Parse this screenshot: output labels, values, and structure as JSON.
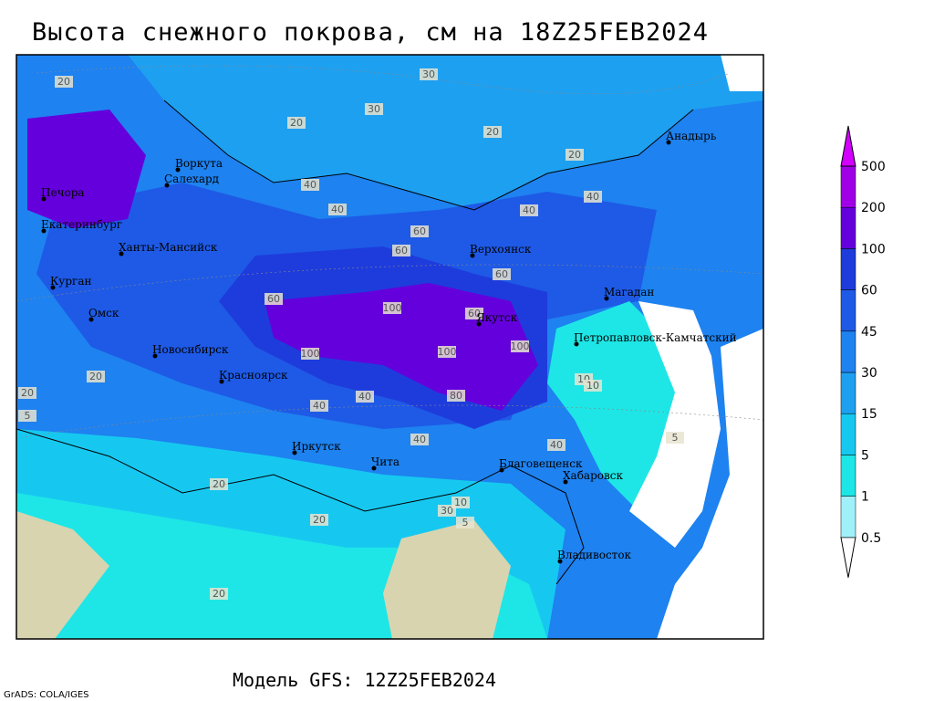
{
  "header": {
    "title": "Высота снежного покрова, см на 18Z25FEB2024"
  },
  "footer": {
    "model": "Модель GFS: 12Z25FEB2024",
    "credit": "GrADS: COLA/IGES"
  },
  "legend": {
    "labels": [
      "0.5",
      "1",
      "5",
      "15",
      "30",
      "45",
      "60",
      "100",
      "200",
      "500"
    ],
    "colors": [
      "#ffffff",
      "#a0f0fa",
      "#1ee6e6",
      "#16c8f0",
      "#1ea0f0",
      "#1e82f0",
      "#1e5ae6",
      "#1e3cdc",
      "#6400dc",
      "#a000e6",
      "#d200ff"
    ]
  },
  "cities": [
    "Воркута",
    "Салехард",
    "Печора",
    "Екатеринбург",
    "Ханты-Мансийск",
    "Курган",
    "Омск",
    "Новосибирск",
    "Красноярск",
    "Иркутск",
    "Чита",
    "Благовещенск",
    "Хабаровск",
    "Владивосток",
    "Якутск",
    "Верхоянск",
    "Магадан",
    "Анадырь",
    "Петропавловск-Камчатский"
  ],
  "contour_labels": [
    "20",
    "30",
    "30",
    "20",
    "20",
    "20",
    "40",
    "40",
    "60",
    "60",
    "60",
    "40",
    "40",
    "100",
    "100",
    "100",
    "80",
    "60",
    "40",
    "40",
    "20",
    "20",
    "10",
    "10",
    "5",
    "5",
    "20",
    "30",
    "10",
    "5",
    "20",
    "40",
    "60",
    "100",
    "40",
    "20"
  ]
}
